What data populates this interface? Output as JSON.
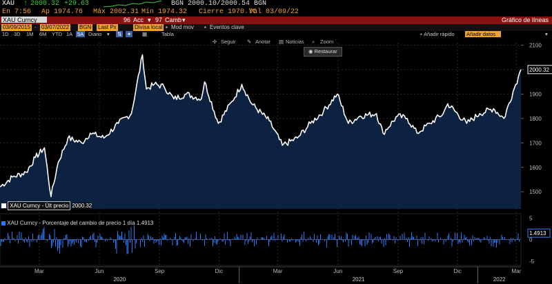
{
  "header": {
    "ticker": "XAU",
    "last": "2000.32",
    "change": "+29.63",
    "bid_ask": "BGN 2000.10/2000.54 BGN",
    "time": "En 7:56",
    "open": "Ap 1974.76",
    "high": "Máx 2002.31",
    "low": "Mín 1974.32",
    "close": "Cierre 1970.7C",
    "val": "Val 03/09/22"
  },
  "toolbar_red": {
    "security": "XAU Curncy",
    "action_num": "96",
    "action_label": "Acc",
    "camb_num": "97",
    "camb_label": "Camb",
    "right_label": "Gráfico de líneas"
  },
  "toolbar_dates": {
    "start": "03/09/2015",
    "end": "03/07/2022",
    "source": "BGN",
    "field": "Last Px",
    "currency": "Divisa local",
    "mode": "Mod mov",
    "events": "Eventos clave"
  },
  "period_bar": {
    "periods": [
      "1D",
      "3D",
      "1M",
      "6M",
      "YTD",
      "1A",
      "5A"
    ],
    "active_period": "5A",
    "interval": "Diario",
    "table": "Tabla",
    "add_quick": "+ Añadir rápido",
    "add_studies": "Añadir datos"
  },
  "chart_toolbar": {
    "follow": "Seguir",
    "annotate": "Anotar",
    "news": "Noticias",
    "zoom": "Zoom",
    "restore": "Restaurar"
  },
  "legend": {
    "price": "XAU Curncy - Últ precio",
    "price_value": "2000.32",
    "pct": "XAU Curncy - Porcentaje del cambio de precio 1 día",
    "pct_value": "1.4913"
  },
  "colors": {
    "line": "#ffffff",
    "area": "#0d2140",
    "bars": "#2b7dff",
    "accent": "#f0a030",
    "red_bar": "#8b1111"
  },
  "chart_data": [
    {
      "type": "area",
      "ylim": [
        1430,
        2110
      ],
      "yticks": [
        1500,
        1600,
        1700,
        1800,
        1900,
        2000,
        2100
      ],
      "x_labels": [
        "Mar",
        "Jun",
        "Sep",
        "Dic",
        "Mar",
        "Jun",
        "Sep",
        "Dic",
        "Mar"
      ],
      "year_labels": [
        "2020",
        "2021",
        "2022"
      ],
      "last_value": 2000.32,
      "series": [
        {
          "x": [
            "2020-01-01",
            "2020-01-20",
            "2020-02-10",
            "2020-02-24",
            "2020-03-09",
            "2020-03-19",
            "2020-03-30",
            "2020-04-14",
            "2020-05-05",
            "2020-05-18",
            "2020-06-08",
            "2020-06-30",
            "2020-07-20",
            "2020-08-06",
            "2020-08-12",
            "2020-08-24",
            "2020-09-08",
            "2020-09-23",
            "2020-10-12",
            "2020-11-04",
            "2020-11-09",
            "2020-11-30",
            "2020-12-21",
            "2021-01-05",
            "2021-01-20",
            "2021-02-16",
            "2021-03-08",
            "2021-03-31",
            "2021-04-20",
            "2021-05-10",
            "2021-05-31",
            "2021-06-17",
            "2021-07-05",
            "2021-07-30",
            "2021-08-09",
            "2021-08-31",
            "2021-09-15",
            "2021-09-30",
            "2021-10-20",
            "2021-11-09",
            "2021-11-16",
            "2021-12-15",
            "2022-01-04",
            "2022-01-25",
            "2022-02-10",
            "2022-02-24",
            "2022-03-04",
            "2022-03-08"
          ],
          "y": [
            1520,
            1560,
            1580,
            1640,
            1680,
            1480,
            1620,
            1720,
            1700,
            1740,
            1720,
            1780,
            1820,
            2060,
            1920,
            1940,
            1930,
            1880,
            1900,
            1880,
            1950,
            1780,
            1870,
            1940,
            1860,
            1790,
            1690,
            1720,
            1780,
            1830,
            1900,
            1780,
            1810,
            1820,
            1740,
            1810,
            1800,
            1740,
            1780,
            1820,
            1860,
            1780,
            1820,
            1840,
            1800,
            1910,
            1970,
            2000
          ]
        }
      ]
    },
    {
      "type": "bar",
      "name": "Porcentaje del cambio de precio 1 día",
      "ylim": [
        -6,
        6
      ],
      "yticks": [
        5,
        0,
        -5
      ],
      "last_value": 1.4913
    }
  ]
}
